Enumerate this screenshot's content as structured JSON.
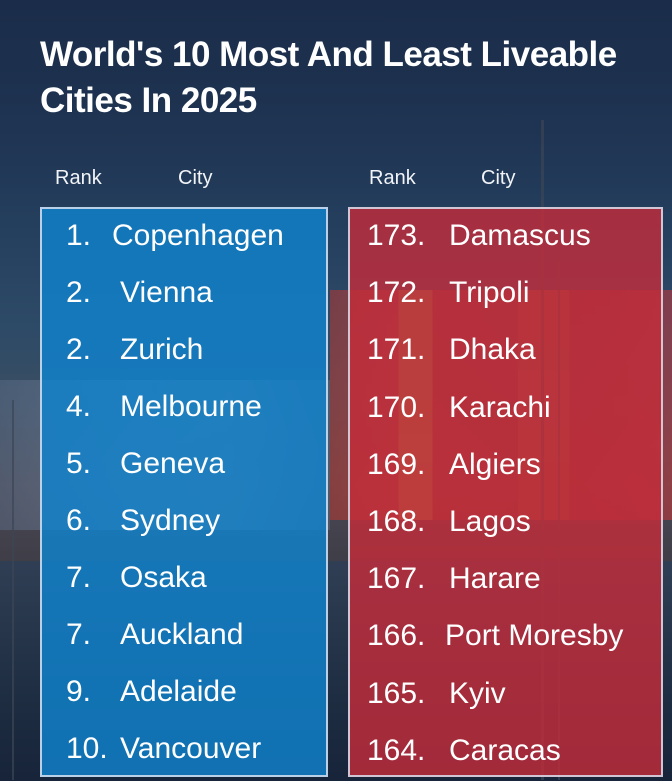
{
  "title": "World's 10 Most And Least Liveable Cities In 2025",
  "headers": {
    "left_rank": "Rank",
    "left_city": "City",
    "right_rank": "Rank",
    "right_city": "City"
  },
  "most_liveable": [
    {
      "rank": "1.",
      "city": "Copenhagen"
    },
    {
      "rank": "2.",
      "city": "Vienna"
    },
    {
      "rank": "2.",
      "city": "Zurich"
    },
    {
      "rank": "4.",
      "city": "Melbourne"
    },
    {
      "rank": "5.",
      "city": "Geneva"
    },
    {
      "rank": "6.",
      "city": "Sydney"
    },
    {
      "rank": "7.",
      "city": "Osaka"
    },
    {
      "rank": "7.",
      "city": "Auckland"
    },
    {
      "rank": "9.",
      "city": "Adelaide"
    },
    {
      "rank": "10.",
      "city": "Vancouver"
    }
  ],
  "least_liveable": [
    {
      "rank": "173.",
      "city": "Damascus"
    },
    {
      "rank": "172.",
      "city": "Tripoli"
    },
    {
      "rank": "171.",
      "city": "Dhaka"
    },
    {
      "rank": "170.",
      "city": "Karachi"
    },
    {
      "rank": "169.",
      "city": "Algiers"
    },
    {
      "rank": "168.",
      "city": "Lagos"
    },
    {
      "rank": "167.",
      "city": "Harare"
    },
    {
      "rank": "166.",
      "city": "Port Moresby"
    },
    {
      "rank": "165.",
      "city": "Kyiv"
    },
    {
      "rank": "164.",
      "city": "Caracas"
    }
  ],
  "colors": {
    "most_panel": "#1082cd",
    "least_panel": "#c62c3a",
    "text": "#ffffff"
  }
}
